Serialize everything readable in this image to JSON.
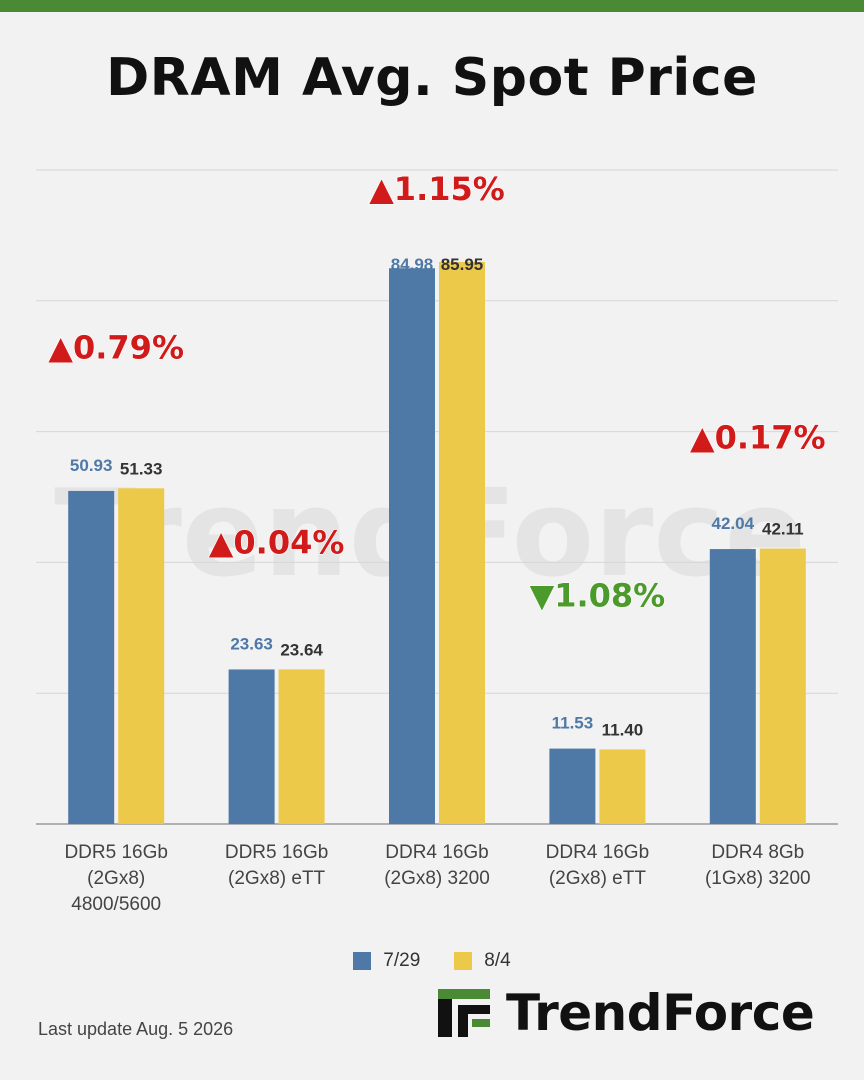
{
  "chart_data": {
    "type": "bar",
    "title": "DRAM Avg. Spot Price",
    "xlabel": "",
    "ylabel": "",
    "ylim": [
      0,
      100
    ],
    "grid": true,
    "legend_position": "bottom-center",
    "categories": [
      [
        "DDR5 16Gb",
        "(2Gx8)",
        "4800/5600"
      ],
      [
        "DDR5 16Gb",
        "(2Gx8) eTT"
      ],
      [
        "DDR4 16Gb",
        "(2Gx8) 3200"
      ],
      [
        "DDR4 16Gb",
        "(2Gx8) eTT"
      ],
      [
        "DDR4 8Gb",
        "(1Gx8) 3200"
      ]
    ],
    "series": [
      {
        "name": "7/29",
        "color": "#4e79a7",
        "label_color": "#4e79a7",
        "values": [
          50.93,
          23.63,
          84.98,
          11.53,
          42.04
        ],
        "labels": [
          "50.93",
          "23.63",
          "84.98",
          "11.53",
          "42.04"
        ]
      },
      {
        "name": "8/4",
        "color": "#edc949",
        "label_color": "#333333",
        "values": [
          51.33,
          23.64,
          85.95,
          11.4,
          42.11
        ],
        "labels": [
          "51.33",
          "23.64",
          "85.95",
          "11.40",
          "42.11"
        ]
      }
    ],
    "changes": [
      {
        "text": "▲0.79%",
        "direction": "up",
        "color": "#d11a1a"
      },
      {
        "text": "▲0.04%",
        "direction": "up",
        "color": "#d11a1a"
      },
      {
        "text": "▲1.15%",
        "direction": "up",
        "color": "#d11a1a"
      },
      {
        "text": "▼1.08%",
        "direction": "down",
        "color": "#4d9a2c"
      },
      {
        "text": "▲0.17%",
        "direction": "up",
        "color": "#d11a1a"
      }
    ]
  },
  "footer": {
    "last_update": "Last update  Aug. 5  2026",
    "brand": "TrendForce",
    "watermark": "TrendForce"
  },
  "colors": {
    "accent_bar": "#4b8a35",
    "logo_green": "#4b8a35"
  }
}
